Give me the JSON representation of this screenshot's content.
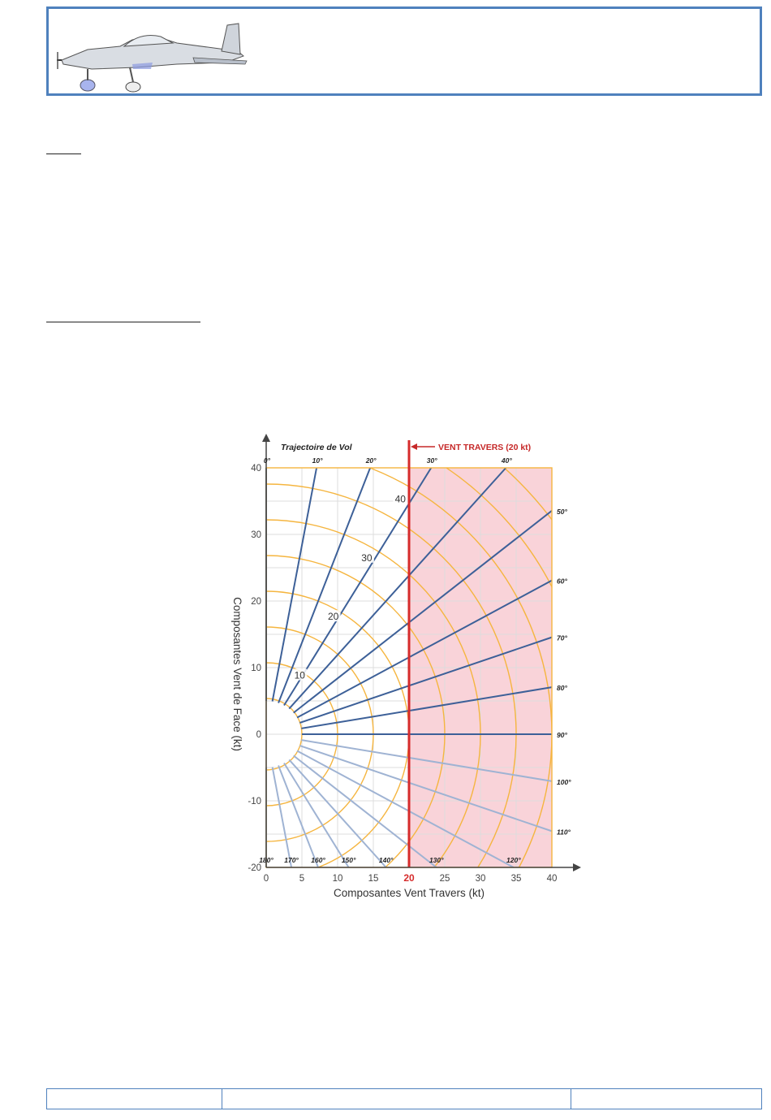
{
  "header": {
    "logo": "aircraft-illustration"
  },
  "chart_data": {
    "type": "line",
    "title": "Trajectoire de Vol",
    "xlabel": "Composantes  Vent Travers (kt)",
    "ylabel": "Composantes  Vent de Face (kt)",
    "xlim": [
      0,
      40
    ],
    "ylim": [
      -20,
      40
    ],
    "x_ticks": [
      "0",
      "5",
      "10",
      "15",
      "20",
      "25",
      "30",
      "35",
      "40"
    ],
    "y_ticks": [
      "40",
      "30",
      "20",
      "10",
      "0",
      "-10",
      "-20"
    ],
    "grid": true,
    "wind_speed_arcs_kt": [
      5,
      10,
      15,
      20,
      25,
      30,
      35,
      40,
      45,
      50,
      55
    ],
    "arc_labels": [
      "10",
      "20",
      "30",
      "40"
    ],
    "angle_labels": [
      "0°",
      "10°",
      "20°",
      "30°",
      "40°",
      "50°",
      "60°",
      "70°",
      "80°",
      "90°",
      "100°",
      "110°",
      "120°",
      "130°",
      "140°",
      "150°",
      "160°",
      "170°",
      "180°"
    ],
    "highlight": {
      "label": "VENT TRAVERS (20 kt)",
      "x": 20,
      "shaded_range": [
        20,
        40
      ],
      "tick_label": "20"
    },
    "colors": {
      "arc": "#f5b53f",
      "radial": "#3d6098",
      "radial_light": "#9fb3d3",
      "highlight": "#d62b2b",
      "shade": "#f9d3d9",
      "axis": "#444444",
      "grid": "#dddddd"
    }
  }
}
